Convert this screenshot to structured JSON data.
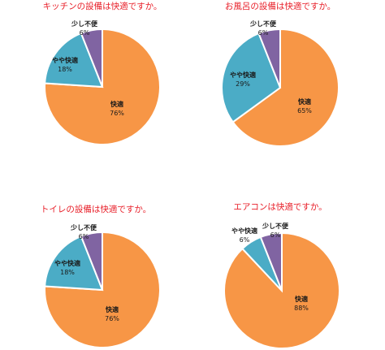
{
  "chart_data": [
    {
      "type": "pie",
      "title": "キッチンの設備は快適ですか。",
      "slices": [
        {
          "label": "快適",
          "value": 76,
          "pct": "76%",
          "color": "#f79646"
        },
        {
          "label": "やや快適",
          "value": 18,
          "pct": "18%",
          "color": "#4bacc6"
        },
        {
          "label": "少し不便",
          "value": 6,
          "pct": "6%",
          "color": "#8064a2"
        }
      ]
    },
    {
      "type": "pie",
      "title": "お風呂の設備は快適ですか。",
      "slices": [
        {
          "label": "快適",
          "value": 65,
          "pct": "65%",
          "color": "#f79646"
        },
        {
          "label": "やや快適",
          "value": 29,
          "pct": "29%",
          "color": "#4bacc6"
        },
        {
          "label": "少し不便",
          "value": 6,
          "pct": "6%",
          "color": "#8064a2"
        }
      ]
    },
    {
      "type": "pie",
      "title": "トイレの設備は快適ですか。",
      "slices": [
        {
          "label": "快適",
          "value": 76,
          "pct": "76%",
          "color": "#f79646"
        },
        {
          "label": "やや快適",
          "value": 18,
          "pct": "18%",
          "color": "#4bacc6"
        },
        {
          "label": "少し不便",
          "value": 6,
          "pct": "6%",
          "color": "#8064a2"
        }
      ]
    },
    {
      "type": "pie",
      "title": "エアコンは快適ですか。",
      "slices": [
        {
          "label": "快適",
          "value": 88,
          "pct": "88%",
          "color": "#f79646"
        },
        {
          "label": "やや快適",
          "value": 6,
          "pct": "6%",
          "color": "#4bacc6"
        },
        {
          "label": "少し不便",
          "value": 6,
          "pct": "6%",
          "color": "#8064a2"
        }
      ]
    }
  ]
}
